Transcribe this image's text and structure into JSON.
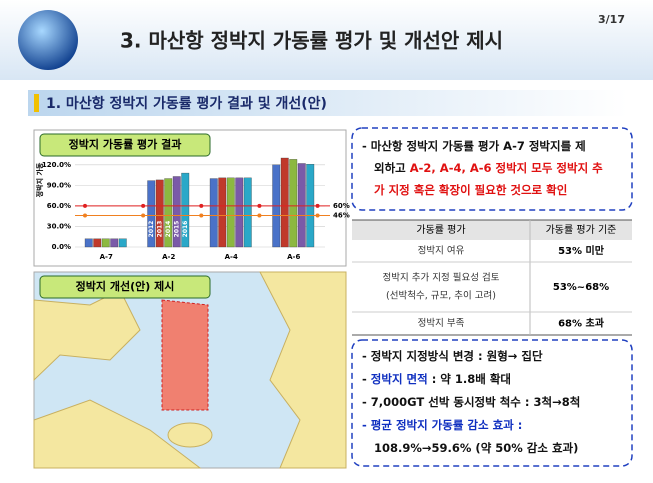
{
  "header": {
    "title": "3. 마산항 정박지 가동률 평가 및 개선안 제시",
    "page": "3/17"
  },
  "section": {
    "title": "1. 마산항 정박지 가동률 평가 결과 및 개선(안)"
  },
  "chart_data": {
    "type": "bar",
    "title": "정박지 가동률 평가 결과",
    "y_label": "정박지 가동",
    "categories": [
      "A-7",
      "A-2",
      "A-4",
      "A-6"
    ],
    "series": [
      {
        "name": "2012",
        "color": "#4a72c8",
        "values": [
          12,
          97,
          100,
          120
        ]
      },
      {
        "name": "2013",
        "color": "#c0392b",
        "values": [
          12,
          98,
          101,
          130
        ]
      },
      {
        "name": "2014",
        "color": "#8cb840",
        "values": [
          12,
          100,
          101,
          128
        ]
      },
      {
        "name": "2015",
        "color": "#7a5aa8",
        "values": [
          12,
          103,
          101,
          122
        ]
      },
      {
        "name": "2016",
        "color": "#2aa8c8",
        "values": [
          12,
          108,
          101,
          121
        ]
      }
    ],
    "ylim": [
      0,
      130
    ],
    "yticks": [
      {
        "value": 0,
        "label": "0.0%"
      },
      {
        "value": 30,
        "label": "30.0%"
      },
      {
        "value": 60,
        "label": "60.0%"
      },
      {
        "value": 90,
        "label": "90.0%"
      },
      {
        "value": 120,
        "label": "120.0%"
      }
    ],
    "reference_lines": [
      {
        "value": 60,
        "label": "60%",
        "color": "#e02020"
      },
      {
        "value": 46,
        "label": "46%",
        "color": "#f08020"
      }
    ]
  },
  "map": {
    "title": "정박지 개선(안) 제시"
  },
  "summary": {
    "lines": [
      [
        {
          "text": "- 마산항 정박지 가동률 평가 A-7 정박지를 제",
          "color": "#111"
        }
      ],
      [
        {
          "text": "외하고 ",
          "color": "#111"
        },
        {
          "text": "A-2, A-4, A-6 정박지 모두 정박지 추",
          "color": "#e01010"
        }
      ],
      [
        {
          "text": "가 지정 혹은 확장이 필요한 것으로 확인",
          "color": "#e01010"
        }
      ]
    ]
  },
  "table": {
    "header": [
      "가동률 평가",
      "가동률 평가 기준"
    ],
    "rows": [
      [
        [
          "정박지 여유"
        ],
        "53% 미만"
      ],
      [
        [
          "정박지 추가 지정 필요성 검토",
          "(선박척수, 규모, 추이 고려)"
        ],
        "53%~68%"
      ],
      [
        [
          "정박지 부족"
        ],
        "68% 초과"
      ]
    ]
  },
  "measures": {
    "lines": [
      [
        {
          "text": "- 정박지 지정방식 변경 : 원형→ 집단",
          "color": "#111"
        }
      ],
      [
        {
          "text": "- ",
          "color": "#111"
        },
        {
          "text": "정박지 면적",
          "color": "#1030c0"
        },
        {
          "text": " : 약 1.8배 확대",
          "color": "#111"
        }
      ],
      [
        {
          "text": "- 7,000GT 선박 동시정박 척수 : 3척→8척",
          "color": "#111"
        }
      ],
      [
        {
          "text": "- 평균 정박지 가동률 감소 효과 :",
          "color": "#1030c0"
        }
      ],
      [
        {
          "text": "108.9%→59.6% (약 50% 감소 효과)",
          "color": "#111"
        }
      ]
    ]
  }
}
